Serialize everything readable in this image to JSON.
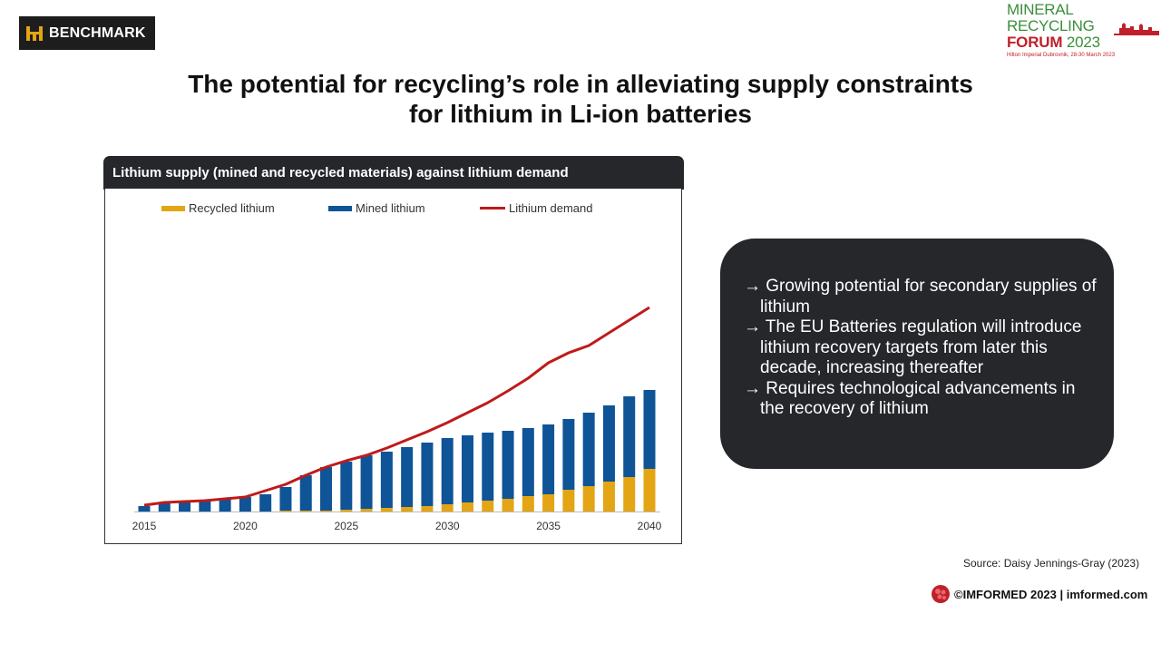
{
  "brand_left": {
    "name": "BENCHMARK",
    "icon": "benchmark-logo-icon"
  },
  "brand_right": {
    "line1": "MINERAL RECYCLING",
    "line2_a": "FORUM",
    "line2_b": "2023",
    "line3": "Hilton Imperial Dubrovnik, 28-30 March 2023"
  },
  "title_line1": "The potential for recycling’s role in alleviating supply constraints",
  "title_line2": "for lithium in Li-ion batteries",
  "chart_panel": {
    "header": "Lithium supply (mined and recycled materials) against lithium demand"
  },
  "chart_data": {
    "type": "bar",
    "stacked": true,
    "categories": [
      2015,
      2016,
      2017,
      2018,
      2019,
      2020,
      2021,
      2022,
      2023,
      2024,
      2025,
      2026,
      2027,
      2028,
      2029,
      2030,
      2031,
      2032,
      2033,
      2034,
      2035,
      2036,
      2037,
      2038,
      2039,
      2040
    ],
    "x_tick_labels": [
      "2015",
      "2020",
      "2025",
      "2030",
      "2035",
      "2040"
    ],
    "ylim": [
      0,
      300
    ],
    "y_axis_shown": false,
    "grid": false,
    "legend_position": "top",
    "series": [
      {
        "name": "Recycled lithium",
        "kind": "bar",
        "color": "#e3a514",
        "values": [
          0,
          0,
          0,
          0,
          0,
          0,
          0,
          1,
          1,
          1,
          2,
          3,
          4,
          5,
          6,
          8,
          10,
          12,
          14,
          17,
          19,
          24,
          28,
          33,
          38,
          47
        ]
      },
      {
        "name": "Mined lithium",
        "kind": "bar",
        "color": "#0e5497",
        "values": [
          6,
          9,
          11,
          13,
          14,
          16,
          19,
          26,
          39,
          48,
          53,
          59,
          62,
          66,
          70,
          73,
          74,
          75,
          75,
          75,
          77,
          78,
          81,
          84,
          89,
          87
        ]
      },
      {
        "name": "Lithium demand",
        "kind": "line",
        "color": "#c01a1a",
        "values": [
          7,
          10,
          11,
          12,
          14,
          16,
          23,
          30,
          40,
          49,
          56,
          62,
          70,
          79,
          88,
          98,
          109,
          120,
          133,
          147,
          164,
          175,
          183,
          197,
          211,
          225
        ]
      }
    ]
  },
  "bullets": [
    "→ Growing potential for secondary supplies of lithium",
    "→ The EU Batteries regulation will introduce lithium recovery targets from later this decade, increasing thereafter",
    "→ Requires technological advancements in the recovery of lithium"
  ],
  "source": "Source: Daisy Jennings-Gray (2023)",
  "footer": {
    "text": "©IMFORMED 2023  | imformed.com",
    "icon": "imformed-logo-icon"
  }
}
